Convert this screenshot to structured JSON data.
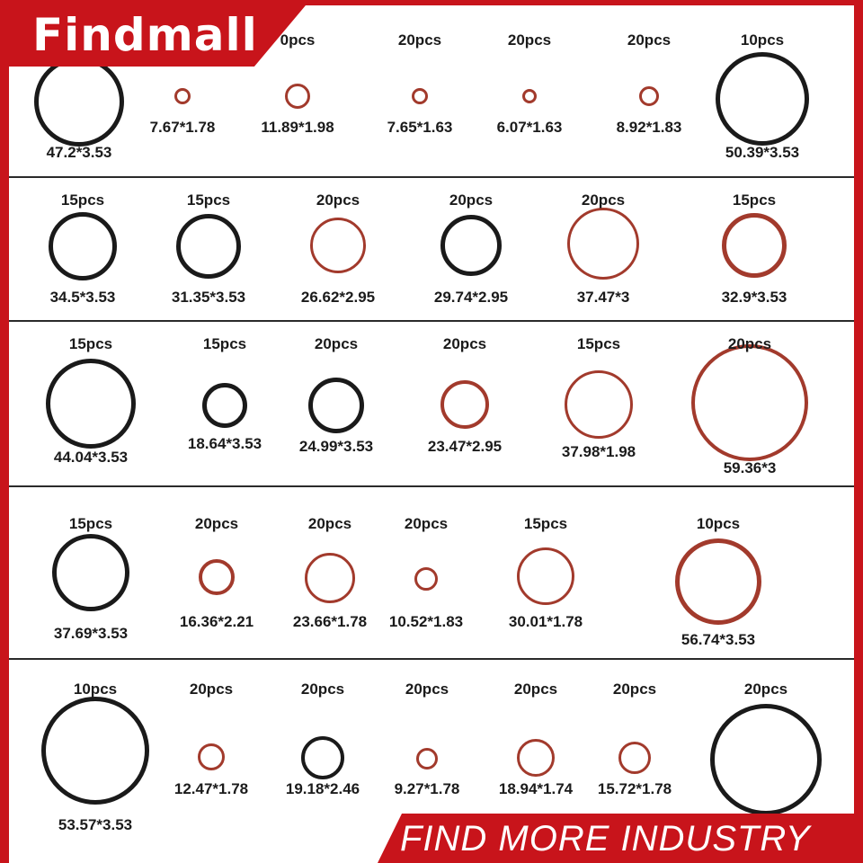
{
  "brand": {
    "name": "Findmall"
  },
  "footer": {
    "text": "FIND MORE INDUSTRY"
  },
  "colors": {
    "accent_red": "#c8141b",
    "black_rubber": "#1a1a1a",
    "red_rubber": "#a23a2c"
  },
  "rows": [
    {
      "items": [
        {
          "count": "",
          "size": "47.2*3.53",
          "material": "black"
        },
        {
          "count": "",
          "size": "7.67*1.78",
          "material": "red"
        },
        {
          "count": "0pcs",
          "size": "11.89*1.98",
          "material": "red"
        },
        {
          "count": "20pcs",
          "size": "7.65*1.63",
          "material": "red"
        },
        {
          "count": "20pcs",
          "size": "6.07*1.63",
          "material": "red"
        },
        {
          "count": "20pcs",
          "size": "8.92*1.83",
          "material": "red"
        },
        {
          "count": "10pcs",
          "size": "50.39*3.53",
          "material": "black"
        }
      ]
    },
    {
      "items": [
        {
          "count": "15pcs",
          "size": "34.5*3.53",
          "material": "black"
        },
        {
          "count": "15pcs",
          "size": "31.35*3.53",
          "material": "black"
        },
        {
          "count": "20pcs",
          "size": "26.62*2.95",
          "material": "red"
        },
        {
          "count": "20pcs",
          "size": "29.74*2.95",
          "material": "black"
        },
        {
          "count": "20pcs",
          "size": "37.47*3",
          "material": "red"
        },
        {
          "count": "15pcs",
          "size": "32.9*3.53",
          "material": "red"
        }
      ]
    },
    {
      "items": [
        {
          "count": "15pcs",
          "size": "44.04*3.53",
          "material": "black"
        },
        {
          "count": "15pcs",
          "size": "18.64*3.53",
          "material": "black"
        },
        {
          "count": "20pcs",
          "size": "24.99*3.53",
          "material": "black"
        },
        {
          "count": "20pcs",
          "size": "23.47*2.95",
          "material": "red"
        },
        {
          "count": "15pcs",
          "size": "37.98*1.98",
          "material": "red"
        },
        {
          "count": "20pcs",
          "size": "59.36*3",
          "material": "red"
        }
      ]
    },
    {
      "items": [
        {
          "count": "15pcs",
          "size": "37.69*3.53",
          "material": "black"
        },
        {
          "count": "20pcs",
          "size": "16.36*2.21",
          "material": "red"
        },
        {
          "count": "20pcs",
          "size": "23.66*1.78",
          "material": "red"
        },
        {
          "count": "20pcs",
          "size": "10.52*1.83",
          "material": "red"
        },
        {
          "count": "15pcs",
          "size": "30.01*1.78",
          "material": "red"
        },
        {
          "count": "10pcs",
          "size": "56.74*3.53",
          "material": "red"
        }
      ]
    },
    {
      "items": [
        {
          "count": "10pcs",
          "size": "53.57*3.53",
          "material": "black"
        },
        {
          "count": "20pcs",
          "size": "12.47*1.78",
          "material": "red"
        },
        {
          "count": "20pcs",
          "size": "19.18*2.46",
          "material": "black"
        },
        {
          "count": "20pcs",
          "size": "9.27*1.78",
          "material": "red"
        },
        {
          "count": "20pcs",
          "size": "18.94*1.74",
          "material": "red"
        },
        {
          "count": "20pcs",
          "size": "15.72*1.78",
          "material": "red"
        },
        {
          "count": "20pcs",
          "size": "",
          "material": "black"
        }
      ]
    }
  ]
}
